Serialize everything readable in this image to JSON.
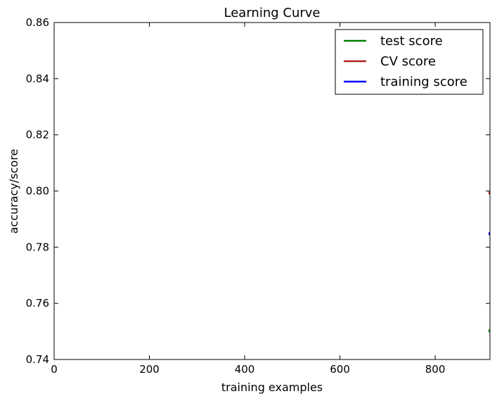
{
  "chart_data": {
    "type": "line",
    "title": "Learning Curve",
    "xlabel": "training examples",
    "ylabel": "accuracy/score",
    "xlim": [
      0,
      915
    ],
    "ylim": [
      0.74,
      0.86
    ],
    "xticks": [
      0,
      200,
      400,
      600,
      800
    ],
    "xtick_labels": [
      "0",
      "200",
      "400",
      "600",
      "800"
    ],
    "yticks": [
      0.74,
      0.76,
      0.78,
      0.8,
      0.82,
      0.84,
      0.86
    ],
    "ytick_labels": [
      "0.74",
      "0.76",
      "0.78",
      "0.80",
      "0.82",
      "0.84",
      "0.86"
    ],
    "grid": false,
    "legend_position": "top-right",
    "series": [
      {
        "name": "test score",
        "color": "#008000",
        "x": [
          915
        ],
        "y": [
          0.7502
        ]
      },
      {
        "name": "CV score",
        "color": "#b22222",
        "x": [
          915
        ],
        "y": [
          0.7993
        ]
      },
      {
        "name": "training score",
        "color": "#0000ff",
        "x": [
          915
        ],
        "y": [
          0.7848
        ]
      }
    ]
  }
}
